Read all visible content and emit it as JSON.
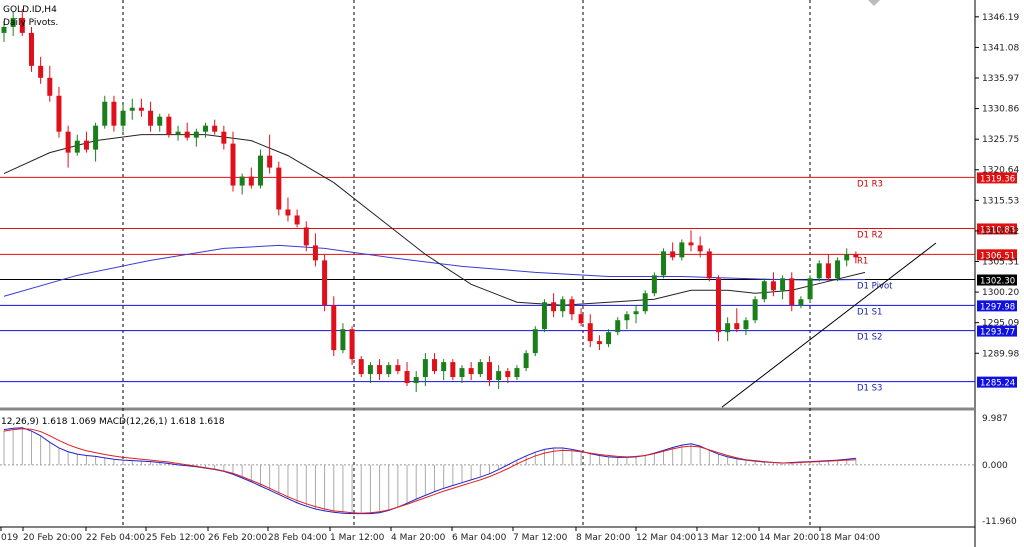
{
  "header": {
    "symbol": "GOLD.ID,H4",
    "indicator": "Daily Pivots."
  },
  "macd_header": "12,26,9) 1.618 1.069 MACD(12,26,1) 1.618 1.618",
  "colors": {
    "bull": "#1a7f1a",
    "bear": "#e0101a",
    "resistance": "#e01010",
    "support": "#1010e0",
    "pivot": "#000000",
    "ma_slow": "#3b3bd6",
    "ma_fast": "#222222",
    "macd_line": "#2222cc",
    "signal_line": "#e02020"
  },
  "price_axis": {
    "ticks": [
      "1346.19",
      "1341.08",
      "1335.97",
      "1330.86",
      "1325.75",
      "1320.64",
      "1315.53",
      "1310.42",
      "1305.31",
      "1300.20",
      "1295.09",
      "1289.98"
    ],
    "range": [
      1281,
      1349
    ]
  },
  "levels": [
    {
      "name": "D1 R3",
      "value": 1319.36,
      "label": "1319.36",
      "kind": "resistance"
    },
    {
      "name": "D1 R2",
      "value": 1310.83,
      "label": "1310.83",
      "kind": "resistance"
    },
    {
      "name": "R1",
      "value": 1306.51,
      "label": "1306.51",
      "kind": "resistance"
    },
    {
      "name": "D1 Pivot",
      "value": 1302.3,
      "label": "1302.30",
      "kind": "pivot"
    },
    {
      "name": "D1 S1",
      "value": 1297.98,
      "label": "1297.98",
      "kind": "support"
    },
    {
      "name": "D1 S2",
      "value": 1293.77,
      "label": "1293.77",
      "kind": "support"
    },
    {
      "name": "D1 S3",
      "value": 1285.24,
      "label": "1285.24",
      "kind": "support"
    }
  ],
  "time_axis": {
    "labels": [
      "019",
      "20 Feb 20:00",
      "22 Feb 04:00",
      "25 Feb 12:00",
      "26 Feb 20:00",
      "28 Feb 04:00",
      "1 Mar 12:00",
      "4 Mar 20:00",
      "6 Mar 04:00",
      "7 Mar 12:00",
      "8 Mar 20:00",
      "12 Mar 04:00",
      "13 Mar 12:00",
      "14 Mar 20:00",
      "18 Mar 04:00"
    ]
  },
  "macd_axis": {
    "ticks": [
      "9.987",
      "0.000",
      "-11.960"
    ]
  },
  "chart_data": {
    "type": "candlestick",
    "range_y": [
      1281,
      1349
    ],
    "candles": [
      [
        1343.5,
        1345.5,
        1342.0,
        1344.5
      ],
      [
        1344.5,
        1347.0,
        1343.0,
        1346.0
      ],
      [
        1346.0,
        1347.5,
        1343.0,
        1343.5
      ],
      [
        1343.5,
        1344.5,
        1337.0,
        1338.0
      ],
      [
        1338.0,
        1339.5,
        1335.0,
        1336.0
      ],
      [
        1336.0,
        1338.0,
        1332.0,
        1333.0
      ],
      [
        1333.0,
        1334.5,
        1326.0,
        1327.0
      ],
      [
        1327.0,
        1328.0,
        1321.0,
        1323.5
      ],
      [
        1323.5,
        1326.5,
        1323.0,
        1325.5
      ],
      [
        1325.5,
        1327.0,
        1323.5,
        1324.0
      ],
      [
        1324.0,
        1328.5,
        1322.0,
        1328.0
      ],
      [
        1328.0,
        1333.0,
        1327.5,
        1332.0
      ],
      [
        1332.0,
        1333.0,
        1327.0,
        1328.0
      ],
      [
        1328.0,
        1331.5,
        1327.0,
        1330.5
      ],
      [
        1330.5,
        1332.5,
        1329.0,
        1331.0
      ],
      [
        1331.0,
        1332.5,
        1329.5,
        1330.5
      ],
      [
        1330.5,
        1332.0,
        1327.0,
        1328.0
      ],
      [
        1328.0,
        1330.0,
        1327.0,
        1329.5
      ],
      [
        1329.5,
        1330.0,
        1326.0,
        1326.5
      ],
      [
        1326.5,
        1328.0,
        1325.5,
        1327.0
      ],
      [
        1327.0,
        1328.5,
        1325.5,
        1326.0
      ],
      [
        1326.0,
        1327.5,
        1324.5,
        1327.0
      ],
      [
        1327.0,
        1328.5,
        1326.0,
        1328.0
      ],
      [
        1328.0,
        1329.0,
        1326.5,
        1327.0
      ],
      [
        1327.0,
        1328.0,
        1324.0,
        1325.0
      ],
      [
        1325.0,
        1327.0,
        1317.0,
        1318.0
      ],
      [
        1318.0,
        1320.0,
        1316.5,
        1319.5
      ],
      [
        1319.5,
        1321.0,
        1317.5,
        1318.0
      ],
      [
        1318.0,
        1324.0,
        1317.5,
        1323.0
      ],
      [
        1323.0,
        1326.5,
        1320.0,
        1321.0
      ],
      [
        1321.0,
        1322.0,
        1313.0,
        1314.0
      ],
      [
        1314.0,
        1316.0,
        1312.0,
        1313.0
      ],
      [
        1313.0,
        1314.0,
        1311.0,
        1311.5
      ],
      [
        1311.0,
        1312.0,
        1307.0,
        1308.0
      ],
      [
        1308.0,
        1310.0,
        1304.5,
        1305.5
      ],
      [
        1305.5,
        1306.5,
        1297.0,
        1298.0
      ],
      [
        1298.0,
        1299.5,
        1289.5,
        1290.5
      ],
      [
        1290.5,
        1295.0,
        1290.0,
        1294.0
      ],
      [
        1294.0,
        1294.5,
        1288.0,
        1289.0
      ],
      [
        1289.0,
        1289.5,
        1286.0,
        1286.5
      ],
      [
        1286.5,
        1288.5,
        1285.0,
        1288.0
      ],
      [
        1288.0,
        1289.0,
        1285.5,
        1286.5
      ],
      [
        1286.5,
        1288.5,
        1286.0,
        1288.0
      ],
      [
        1288.0,
        1289.0,
        1286.5,
        1287.0
      ],
      [
        1287.0,
        1288.5,
        1284.5,
        1285.0
      ],
      [
        1285.0,
        1287.0,
        1283.5,
        1286.0
      ],
      [
        1286.0,
        1290.0,
        1284.5,
        1289.0
      ],
      [
        1289.0,
        1290.0,
        1286.5,
        1287.0
      ],
      [
        1287.0,
        1289.0,
        1285.5,
        1288.5
      ],
      [
        1288.5,
        1289.0,
        1285.5,
        1286.0
      ],
      [
        1286.0,
        1288.0,
        1285.0,
        1287.5
      ],
      [
        1287.5,
        1288.5,
        1285.5,
        1286.5
      ],
      [
        1286.5,
        1289.0,
        1286.0,
        1288.5
      ],
      [
        1288.5,
        1289.5,
        1284.5,
        1285.5
      ],
      [
        1285.5,
        1288.0,
        1284.0,
        1287.0
      ],
      [
        1287.0,
        1287.5,
        1285.0,
        1286.0
      ],
      [
        1286.0,
        1288.0,
        1285.5,
        1287.5
      ],
      [
        1287.5,
        1290.5,
        1287.0,
        1290.0
      ],
      [
        1290.0,
        1294.5,
        1289.5,
        1294.0
      ],
      [
        1294.0,
        1299.0,
        1293.5,
        1298.5
      ],
      [
        1298.5,
        1300.0,
        1296.0,
        1297.0
      ],
      [
        1297.0,
        1299.5,
        1296.0,
        1299.0
      ],
      [
        1299.0,
        1299.5,
        1295.5,
        1296.5
      ],
      [
        1296.5,
        1297.5,
        1294.5,
        1295.0
      ],
      [
        1295.0,
        1296.5,
        1291.0,
        1292.0
      ],
      [
        1292.0,
        1293.0,
        1290.5,
        1291.5
      ],
      [
        1291.5,
        1294.0,
        1291.0,
        1293.5
      ],
      [
        1293.5,
        1296.0,
        1293.0,
        1295.5
      ],
      [
        1295.5,
        1297.0,
        1294.0,
        1296.5
      ],
      [
        1296.5,
        1298.0,
        1295.0,
        1297.0
      ],
      [
        1297.0,
        1300.5,
        1296.5,
        1300.0
      ],
      [
        1300.0,
        1303.5,
        1299.5,
        1303.0
      ],
      [
        1303.0,
        1307.5,
        1302.5,
        1307.0
      ],
      [
        1307.0,
        1308.5,
        1305.5,
        1306.0
      ],
      [
        1306.0,
        1309.0,
        1305.5,
        1308.5
      ],
      [
        1308.5,
        1310.5,
        1307.0,
        1308.0
      ],
      [
        1308.0,
        1309.5,
        1306.0,
        1307.0
      ],
      [
        1307.0,
        1307.5,
        1302.0,
        1302.5
      ],
      [
        1302.5,
        1303.0,
        1292.0,
        1293.5
      ],
      [
        1293.5,
        1296.0,
        1292.0,
        1295.0
      ],
      [
        1295.0,
        1297.5,
        1293.5,
        1294.0
      ],
      [
        1294.0,
        1296.0,
        1293.0,
        1295.5
      ],
      [
        1295.5,
        1299.5,
        1295.0,
        1299.0
      ],
      [
        1299.0,
        1302.5,
        1298.5,
        1302.0
      ],
      [
        1302.0,
        1303.5,
        1299.5,
        1300.5
      ],
      [
        1300.5,
        1303.0,
        1299.0,
        1302.5
      ],
      [
        1302.5,
        1303.5,
        1297.0,
        1298.0
      ],
      [
        1298.0,
        1299.5,
        1297.5,
        1299.0
      ],
      [
        1299.0,
        1303.0,
        1298.5,
        1302.5
      ],
      [
        1302.5,
        1305.5,
        1302.0,
        1305.0
      ],
      [
        1305.0,
        1306.5,
        1302.0,
        1302.5
      ],
      [
        1302.5,
        1306.0,
        1302.0,
        1305.5
      ],
      [
        1305.5,
        1307.5,
        1304.5,
        1306.5
      ],
      [
        1306.5,
        1307.0,
        1305.0,
        1306.0
      ]
    ],
    "ma_fast": [
      [
        0,
        1320.0
      ],
      [
        5,
        1323.5
      ],
      [
        10,
        1325.5
      ],
      [
        15,
        1326.5
      ],
      [
        22,
        1326.5
      ],
      [
        27,
        1325.5
      ],
      [
        31,
        1323.0
      ],
      [
        36,
        1318.5
      ],
      [
        41,
        1312.5
      ],
      [
        46,
        1306.5
      ],
      [
        51,
        1301.5
      ],
      [
        56,
        1298.5
      ],
      [
        61,
        1298.0
      ],
      [
        66,
        1298.5
      ],
      [
        71,
        1299.0
      ],
      [
        75,
        1300.5
      ],
      [
        79,
        1300.5
      ],
      [
        82,
        1300.0
      ],
      [
        86,
        1300.5
      ],
      [
        90,
        1302.0
      ],
      [
        94,
        1303.5
      ]
    ],
    "ma_slow": [
      [
        0,
        1299.5
      ],
      [
        8,
        1303.0
      ],
      [
        16,
        1305.5
      ],
      [
        24,
        1307.5
      ],
      [
        30,
        1308.0
      ],
      [
        35,
        1307.5
      ],
      [
        42,
        1306.0
      ],
      [
        50,
        1304.5
      ],
      [
        58,
        1303.5
      ],
      [
        66,
        1302.8
      ],
      [
        74,
        1302.8
      ],
      [
        82,
        1302.4
      ],
      [
        88,
        1302.2
      ],
      [
        94,
        1302.3
      ]
    ],
    "trendline": [
      [
        69,
        1291.0
      ],
      [
        97,
        1307.2
      ]
    ],
    "macd": {
      "range_y": [
        -11.96,
        9.987
      ],
      "histogram": [
        7.5,
        7.8,
        7.9,
        7.2,
        6.2,
        4.8,
        3.6,
        2.8,
        2.3,
        2.0,
        1.8,
        1.5,
        1.2,
        1.0,
        0.9,
        0.8,
        0.7,
        0.5,
        0.3,
        0.0,
        -0.2,
        -0.4,
        -0.7,
        -1.0,
        -1.4,
        -2.0,
        -2.8,
        -3.6,
        -4.5,
        -5.4,
        -6.3,
        -7.2,
        -8.1,
        -8.8,
        -9.4,
        -9.8,
        -10.1,
        -10.3,
        -10.4,
        -10.4,
        -10.4,
        -10.2,
        -9.7,
        -9.0,
        -8.2,
        -7.3,
        -6.5,
        -5.7,
        -5.0,
        -4.4,
        -3.8,
        -3.2,
        -2.6,
        -1.9,
        -1.0,
        0.0,
        1.0,
        1.9,
        2.7,
        3.3,
        3.6,
        3.6,
        3.3,
        2.9,
        2.4,
        2.0,
        1.7,
        1.6,
        1.6,
        1.7,
        2.0,
        2.5,
        3.1,
        3.7,
        4.2,
        4.5,
        4.0,
        3.1,
        2.3,
        1.7,
        1.3,
        1.0,
        0.8,
        0.6,
        0.5,
        0.4,
        0.5,
        0.6,
        0.7,
        0.8,
        0.9,
        1.0,
        1.2,
        1.4
      ],
      "signal": [
        7.2,
        7.5,
        7.7,
        7.6,
        7.1,
        6.2,
        5.2,
        4.3,
        3.6,
        3.0,
        2.6,
        2.2,
        1.9,
        1.6,
        1.4,
        1.2,
        1.0,
        0.8,
        0.6,
        0.3,
        0.0,
        -0.3,
        -0.6,
        -0.9,
        -1.3,
        -1.8,
        -2.5,
        -3.3,
        -4.1,
        -5.0,
        -5.9,
        -6.8,
        -7.6,
        -8.3,
        -8.9,
        -9.4,
        -9.8,
        -10.0,
        -10.2,
        -10.3,
        -10.2,
        -10.0,
        -9.6,
        -9.0,
        -8.4,
        -7.7,
        -7.0,
        -6.3,
        -5.6,
        -5.0,
        -4.4,
        -3.8,
        -3.2,
        -2.5,
        -1.7,
        -0.8,
        0.2,
        1.1,
        1.9,
        2.5,
        2.9,
        3.1,
        3.0,
        2.8,
        2.5,
        2.2,
        2.0,
        1.8,
        1.7,
        1.8,
        2.0,
        2.4,
        2.9,
        3.4,
        3.8,
        4.0,
        3.8,
        3.2,
        2.6,
        2.0,
        1.5,
        1.1,
        0.9,
        0.7,
        0.5,
        0.4,
        0.4,
        0.5,
        0.6,
        0.7,
        0.8,
        0.9,
        1.0,
        1.1
      ]
    },
    "vlines_at": [
      0,
      11,
      32,
      53,
      75,
      95
    ]
  }
}
